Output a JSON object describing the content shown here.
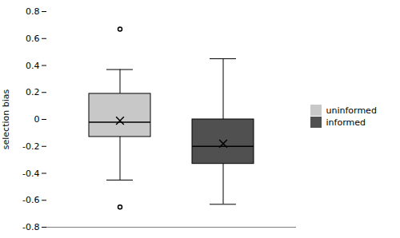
{
  "chart_data": {
    "type": "box",
    "ylabel": "selection bias",
    "ylim": [
      -0.8,
      0.8
    ],
    "yticks": [
      -0.8,
      -0.6,
      -0.4,
      -0.2,
      0,
      0.2,
      0.4,
      0.6,
      0.8
    ],
    "tick_labels": "y",
    "legend": "right",
    "marker": "x",
    "series": [
      {
        "name": "uninformed",
        "color": "#c8c8c8",
        "med": -0.02,
        "q1": -0.13,
        "q3": 0.19,
        "whislo": -0.45,
        "whishi": 0.37,
        "mean": -0.01,
        "fliers": [
          0.67,
          -0.65
        ]
      },
      {
        "name": "informed",
        "color": "#505050",
        "med": -0.2,
        "q1": -0.33,
        "q3": 0.0,
        "whislo": -0.63,
        "whishi": 0.45,
        "mean": -0.18,
        "fliers": []
      }
    ]
  }
}
